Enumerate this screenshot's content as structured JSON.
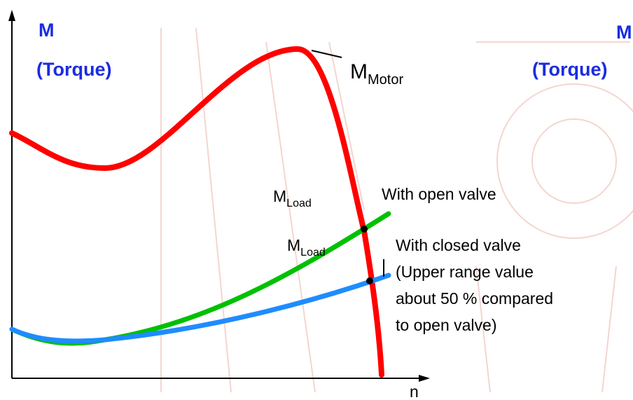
{
  "left_axis": {
    "symbol": "M",
    "label": "(Torque)"
  },
  "right_axis": {
    "symbol": "M",
    "label": "(Torque)"
  },
  "x_axis": {
    "label": "n"
  },
  "motor_curve": {
    "symbol": "M",
    "subscript": "Motor"
  },
  "open_valve": {
    "symbol": "M",
    "subscript": "Load",
    "label": "With open valve"
  },
  "closed_valve": {
    "symbol": "M",
    "subscript": "Load",
    "lines": [
      "With closed valve",
      "(Upper range value",
      "about 50 % compared",
      "to open valve)"
    ]
  }
}
